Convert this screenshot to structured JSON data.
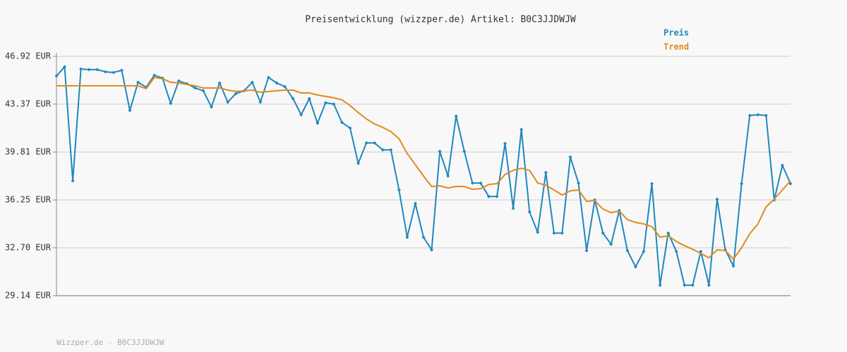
{
  "chart_data": {
    "type": "line",
    "title": "Preisentwicklung (wizzper.de) Artikel: B0C3JJDWJW",
    "footer": "Wizzper.de - B0C3JJDWJW",
    "categories": [
      null,
      null,
      null,
      null,
      null,
      null,
      null,
      null,
      null,
      null,
      null,
      null,
      null,
      null,
      null,
      null,
      null,
      null,
      null,
      null,
      null,
      null,
      null,
      null,
      null,
      null,
      null,
      null,
      null,
      null,
      null,
      null,
      null,
      null,
      null,
      null,
      null,
      null,
      null,
      null,
      null,
      null,
      null,
      null,
      null,
      null,
      null,
      null,
      null,
      null,
      null,
      null,
      null,
      null,
      null,
      null,
      null,
      null,
      null,
      null,
      null,
      null,
      null,
      null,
      null,
      null,
      null,
      null,
      null,
      null,
      null,
      null,
      null,
      null,
      null,
      null,
      null,
      null,
      null,
      null,
      null,
      null,
      null,
      null,
      null,
      null,
      null,
      null,
      null,
      null,
      null
    ],
    "series": [
      {
        "name": "Preis",
        "color": "#1f88be",
        "markers": true,
        "values": [
          45.46,
          46.14,
          37.67,
          45.98,
          45.93,
          45.93,
          45.77,
          45.72,
          45.88,
          42.9,
          44.99,
          44.62,
          45.51,
          45.3,
          43.42,
          45.09,
          44.88,
          44.57,
          44.36,
          43.16,
          44.94,
          43.52,
          44.15,
          44.36,
          44.99,
          43.52,
          45.35,
          44.94,
          44.67,
          43.78,
          42.58,
          43.78,
          41.95,
          43.47,
          43.37,
          42.01,
          41.59,
          38.97,
          40.49,
          40.49,
          39.97,
          39.97,
          36.99,
          33.48,
          35.99,
          33.48,
          32.54,
          39.86,
          38.03,
          42.48,
          39.86,
          37.51,
          37.51,
          36.51,
          36.51,
          40.44,
          35.63,
          41.48,
          35.36,
          33.85,
          38.29,
          33.79,
          33.79,
          39.44,
          37.51,
          32.49,
          36.25,
          33.79,
          32.96,
          35.47,
          32.49,
          31.28,
          32.43,
          37.46,
          29.92,
          33.79,
          32.43,
          29.92,
          29.92,
          32.43,
          29.92,
          36.31,
          32.54,
          31.34,
          37.46,
          42.53,
          42.58,
          42.53,
          36.25,
          38.82,
          37.46
        ]
      },
      {
        "name": "Trend",
        "color": "#e08a1e",
        "markers": false,
        "values": [
          44.73,
          44.73,
          44.73,
          44.73,
          44.73,
          44.73,
          44.73,
          44.73,
          44.73,
          44.73,
          44.73,
          44.52,
          45.35,
          45.25,
          44.99,
          44.94,
          44.83,
          44.73,
          44.57,
          44.57,
          44.57,
          44.41,
          44.31,
          44.36,
          44.41,
          44.25,
          44.31,
          44.36,
          44.41,
          44.41,
          44.2,
          44.2,
          44.05,
          43.94,
          43.84,
          43.68,
          43.26,
          42.74,
          42.27,
          41.9,
          41.64,
          41.33,
          40.8,
          39.7,
          38.87,
          38.03,
          37.25,
          37.3,
          37.14,
          37.25,
          37.25,
          37.04,
          37.09,
          37.4,
          37.46,
          38.14,
          38.45,
          38.61,
          38.45,
          37.51,
          37.35,
          36.99,
          36.62,
          36.93,
          36.99,
          36.15,
          36.2,
          35.57,
          35.31,
          35.42,
          34.79,
          34.58,
          34.47,
          34.27,
          33.48,
          33.59,
          33.17,
          32.85,
          32.59,
          32.28,
          31.96,
          32.54,
          32.49,
          31.86,
          32.7,
          33.74,
          34.47,
          35.73,
          36.31,
          36.99,
          37.67
        ]
      }
    ],
    "ylim": [
      29.14,
      46.92
    ],
    "yticks": [
      {
        "value": 29.14,
        "label": "29.14 EUR"
      },
      {
        "value": 32.7,
        "label": "32.70 EUR"
      },
      {
        "value": 36.25,
        "label": "36.25 EUR"
      },
      {
        "value": 39.81,
        "label": "39.81 EUR"
      },
      {
        "value": 43.37,
        "label": "43.37 EUR"
      },
      {
        "value": 46.92,
        "label": "46.92 EUR"
      }
    ],
    "grid": true
  }
}
